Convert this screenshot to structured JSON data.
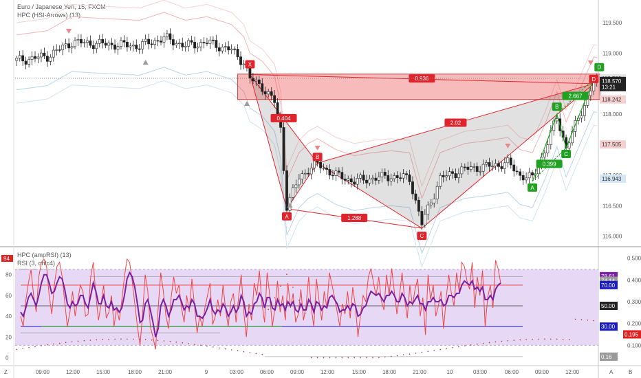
{
  "header": {
    "title": "Euro / Japanese Yen, 15, FXCM",
    "indicator": "HPC (HSI-Arrows) (13)"
  },
  "sub_legend": [
    "HPC (ampRSI) (13)",
    "RSI (3, ohlc4)",
    "ATR (7, RMA)"
  ],
  "left_badge": "94",
  "corner_labels": {
    "left": "Z",
    "axis_a": "A",
    "axis_b": "B"
  },
  "colors": {
    "up_candle": "#ffffff",
    "down_candle": "#222222",
    "pattern_red": "#e0242b",
    "pattern_green": "#21a121",
    "rsi_red": "#ee4444",
    "rsi_purple": "#7a1fa2",
    "oversold_blue": "#1c1cbf",
    "band_fill": "#e7d8f5"
  },
  "chart_data": [
    {
      "type": "candlestick",
      "title": "Euro / Japanese Yen, 15, FXCM",
      "ylim": [
        115.85,
        119.85
      ],
      "y_ticks": [
        "119.500",
        "119.000",
        "118.500",
        "118.000",
        "117.500",
        "117.000",
        "116.500",
        "116.000"
      ],
      "x_ticks": [
        "09:00",
        "12:00",
        "15:00",
        "18:00",
        "21:00",
        "9",
        "03:00",
        "06:00",
        "09:00",
        "12:00",
        "15:00",
        "18:00",
        "21:00",
        "10",
        "03:00",
        "06:00",
        "09:00",
        "12:00"
      ],
      "price_badges": [
        {
          "label": "118.589",
          "value": 118.589,
          "style": "light"
        },
        {
          "label": "118.570",
          "value": 118.545,
          "style": "dark"
        },
        {
          "label": "13:21",
          "value": 118.445,
          "style": "dark"
        },
        {
          "label": "118.242",
          "value": 118.242,
          "style": "pink"
        },
        {
          "label": "117.505",
          "value": 117.505,
          "style": "pink"
        },
        {
          "label": "116.943",
          "value": 116.943,
          "style": "blue"
        }
      ],
      "harmonic_pattern": {
        "points": [
          {
            "label": "X",
            "t": 76,
            "price": 118.65
          },
          {
            "label": "A",
            "t": 88,
            "price": 116.45
          },
          {
            "label": "B",
            "t": 98,
            "price": 117.2
          },
          {
            "label": "C",
            "t": 132,
            "price": 116.13
          },
          {
            "label": "D",
            "t": 188,
            "price": 118.5
          }
        ],
        "ratios": [
          "0.936",
          "0.404",
          "2.02",
          "1.288"
        ],
        "zone": [
          118.242,
          118.658
        ]
      },
      "abcd_pattern": {
        "points": [
          {
            "label": "A",
            "t": 168,
            "price": 116.9
          },
          {
            "label": "B",
            "t": 176,
            "price": 118.0
          },
          {
            "label": "C",
            "t": 179,
            "price": 117.45
          },
          {
            "label": "D",
            "t": 188,
            "price": 118.58
          }
        ],
        "ratios": [
          "0.399",
          "2.667"
        ]
      }
    },
    {
      "type": "line",
      "title": "HPC (ampRSI) (13)",
      "ylim": [
        -5,
        105
      ],
      "y_ticks": [
        "80",
        "60",
        "40",
        "20",
        "0"
      ],
      "right_ticks": [
        "0.500",
        "0.400",
        "0.300",
        "0.200",
        "0.100"
      ],
      "levels": [
        {
          "label": "78.61",
          "value": 78.61,
          "style": "purple"
        },
        {
          "label": "74.14",
          "value": 74.14,
          "style": "gray"
        },
        {
          "label": "70.00",
          "value": 70,
          "style": "blue"
        },
        {
          "label": "50.00",
          "value": 50,
          "style": "dark"
        },
        {
          "label": "30.00",
          "value": 30,
          "style": "blue"
        },
        {
          "label": "0.195",
          "value": 22.5,
          "style": "red"
        },
        {
          "label": "0.16",
          "value": 1.0,
          "style": "gray"
        }
      ],
      "band": [
        12,
        85
      ],
      "series": [
        {
          "name": "RSI (3, ohlc4)",
          "values": [
            40,
            30,
            55,
            72,
            85,
            60,
            44,
            78,
            92,
            95,
            88,
            60,
            42,
            70,
            88,
            92,
            78,
            54,
            30,
            44,
            64,
            40,
            55,
            70,
            64,
            40,
            42,
            78,
            92,
            60,
            36,
            52,
            70,
            38,
            44,
            60,
            30,
            48,
            36,
            55,
            78,
            95,
            92,
            74,
            52,
            30,
            12,
            42,
            80,
            64,
            30,
            20,
            8,
            48,
            82,
            64,
            40,
            28,
            58,
            78,
            62,
            70,
            48,
            34,
            60,
            44,
            76,
            50,
            24,
            40,
            30,
            48,
            60,
            72,
            32,
            40,
            56,
            40,
            70,
            46,
            30,
            54,
            62,
            34,
            58,
            80,
            44,
            20,
            52,
            36,
            72,
            60,
            84,
            52,
            34,
            82,
            60,
            30,
            48,
            74,
            44,
            60,
            36,
            72,
            48,
            62,
            34,
            42,
            66,
            36,
            50,
            78,
            48,
            30,
            76,
            55,
            36,
            64,
            48,
            82,
            70,
            58,
            44,
            30,
            52,
            42,
            64,
            38,
            68,
            50,
            20,
            42,
            60,
            54,
            78,
            86,
            72,
            60,
            78,
            55,
            46,
            80,
            60,
            86,
            64,
            42,
            60,
            82,
            56,
            38,
            70,
            50,
            66,
            76,
            40,
            58,
            22,
            80,
            56,
            70,
            40,
            50,
            64,
            28,
            58,
            80,
            62,
            50,
            82,
            64,
            92,
            88,
            74,
            66,
            92,
            48,
            78,
            60,
            84,
            30,
            58,
            70,
            48,
            94,
            86,
            72
          ]
        },
        {
          "name": "HPC (ampRSI) (13)",
          "values": [
            44,
            40,
            48,
            58,
            62,
            56,
            50,
            60,
            72,
            80,
            80,
            72,
            62,
            64,
            72,
            78,
            76,
            66,
            52,
            48,
            54,
            50,
            52,
            60,
            60,
            52,
            48,
            60,
            72,
            64,
            52,
            52,
            60,
            50,
            48,
            54,
            46,
            48,
            44,
            48,
            60,
            76,
            82,
            78,
            68,
            52,
            34,
            36,
            52,
            56,
            46,
            34,
            20,
            28,
            50,
            56,
            50,
            40,
            46,
            56,
            56,
            60,
            54,
            46,
            50,
            48,
            56,
            52,
            40,
            40,
            38,
            42,
            48,
            56,
            46,
            42,
            46,
            44,
            52,
            48,
            40,
            44,
            50,
            44,
            48,
            60,
            54,
            40,
            44,
            42,
            52,
            54,
            62,
            58,
            48,
            58,
            58,
            48,
            46,
            56,
            50,
            52,
            46,
            54,
            50,
            54,
            46,
            44,
            52,
            46,
            46,
            56,
            52,
            44,
            54,
            52,
            46,
            50,
            48,
            58,
            60,
            56,
            52,
            44,
            46,
            46,
            50,
            46,
            52,
            50,
            40,
            42,
            48,
            50,
            58,
            64,
            62,
            60,
            62,
            58,
            54,
            60,
            60,
            64,
            60,
            54,
            54,
            62,
            58,
            50,
            54,
            52,
            56,
            60,
            52,
            52,
            46,
            54,
            54,
            58,
            54,
            54,
            56,
            50,
            52,
            60,
            60,
            58,
            62,
            62,
            70,
            74,
            72,
            70,
            74,
            66,
            68,
            64,
            68,
            56,
            56,
            60,
            56,
            66,
            70,
            72
          ]
        }
      ]
    }
  ]
}
